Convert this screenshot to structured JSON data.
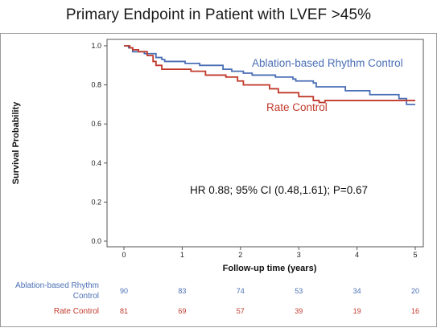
{
  "title": "Primary Endpoint in Patient with LVEF >45%",
  "chart_data": {
    "type": "line",
    "step": true,
    "xlabel": "Follow-up time (years)",
    "ylabel": "Survival Probability",
    "xlim": [
      0,
      5
    ],
    "ylim": [
      0,
      1.0
    ],
    "xticks": [
      "0",
      "1",
      "2",
      "3",
      "4",
      "5"
    ],
    "yticks": [
      "0.0",
      "0.2",
      "0.4",
      "0.6",
      "0.8",
      "1.0"
    ],
    "annotation": "HR 0.88; 95% CI (0.48,1.61); P=0.67",
    "series": [
      {
        "name": "Ablation-based Rhythm Control",
        "color": "#4a6fb5",
        "points": [
          [
            0,
            1.0
          ],
          [
            0.08,
            0.99
          ],
          [
            0.15,
            0.97
          ],
          [
            0.35,
            0.96
          ],
          [
            0.55,
            0.94
          ],
          [
            0.65,
            0.93
          ],
          [
            0.7,
            0.92
          ],
          [
            1.05,
            0.91
          ],
          [
            1.3,
            0.9
          ],
          [
            1.7,
            0.88
          ],
          [
            1.85,
            0.87
          ],
          [
            2.05,
            0.86
          ],
          [
            2.2,
            0.85
          ],
          [
            2.6,
            0.84
          ],
          [
            2.9,
            0.83
          ],
          [
            2.95,
            0.82
          ],
          [
            3.25,
            0.81
          ],
          [
            3.3,
            0.79
          ],
          [
            3.75,
            0.79
          ],
          [
            3.8,
            0.77
          ],
          [
            4.2,
            0.77
          ],
          [
            4.22,
            0.75
          ],
          [
            4.7,
            0.75
          ],
          [
            4.72,
            0.73
          ],
          [
            4.85,
            0.7
          ],
          [
            5.0,
            0.7
          ]
        ]
      },
      {
        "name": "Rate Control",
        "color": "#c0392b",
        "points": [
          [
            0,
            1.0
          ],
          [
            0.1,
            0.99
          ],
          [
            0.15,
            0.98
          ],
          [
            0.25,
            0.97
          ],
          [
            0.4,
            0.95
          ],
          [
            0.5,
            0.92
          ],
          [
            0.55,
            0.9
          ],
          [
            0.65,
            0.88
          ],
          [
            1.15,
            0.87
          ],
          [
            1.4,
            0.85
          ],
          [
            1.75,
            0.84
          ],
          [
            1.95,
            0.82
          ],
          [
            2.05,
            0.8
          ],
          [
            2.5,
            0.78
          ],
          [
            2.65,
            0.76
          ],
          [
            3.0,
            0.74
          ],
          [
            3.25,
            0.72
          ],
          [
            3.35,
            0.71
          ],
          [
            3.45,
            0.72
          ],
          [
            4.6,
            0.72
          ],
          [
            5.0,
            0.72
          ]
        ]
      }
    ],
    "risk_table": {
      "times": [
        0,
        1,
        2,
        3,
        4,
        5
      ],
      "rows": [
        {
          "label_line1": "Ablation-based Rhythm",
          "label_line2": "Control",
          "color": "#4a6fb5",
          "values": [
            "90",
            "83",
            "74",
            "53",
            "34",
            "20"
          ]
        },
        {
          "label_line1": "Rate Control",
          "label_line2": "",
          "color": "#c0392b",
          "values": [
            "81",
            "69",
            "57",
            "39",
            "19",
            "16"
          ]
        }
      ]
    }
  }
}
